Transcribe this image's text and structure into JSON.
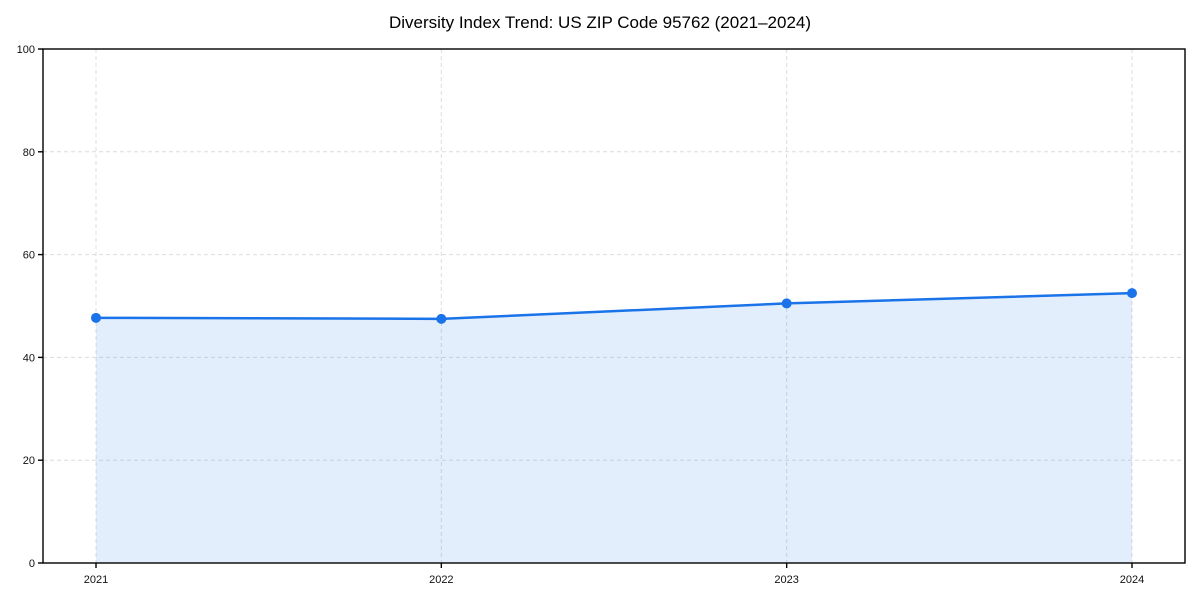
{
  "chart_data": {
    "type": "area",
    "title": "Diversity Index Trend: US ZIP Code 95762 (2021–2024)",
    "categories": [
      "2021",
      "2022",
      "2023",
      "2024"
    ],
    "series": [
      {
        "name": "Diversity Index",
        "values": [
          47.7,
          47.5,
          50.5,
          52.5
        ]
      }
    ],
    "xlabel": "",
    "ylabel": "",
    "ylim": [
      0,
      100
    ],
    "yticks": [
      0,
      20,
      40,
      60,
      80,
      100
    ],
    "grid": "dashed both axes",
    "legend_position": "none",
    "marker": "circle",
    "colors": {
      "line": "#1a73e8",
      "area_fill": "#1a73e8",
      "area_opacity": 0.12,
      "grid": "#dcdcdc",
      "axis": "#000000",
      "tick_label": "#111111",
      "title": "#000000",
      "background": "#ffffff"
    }
  }
}
